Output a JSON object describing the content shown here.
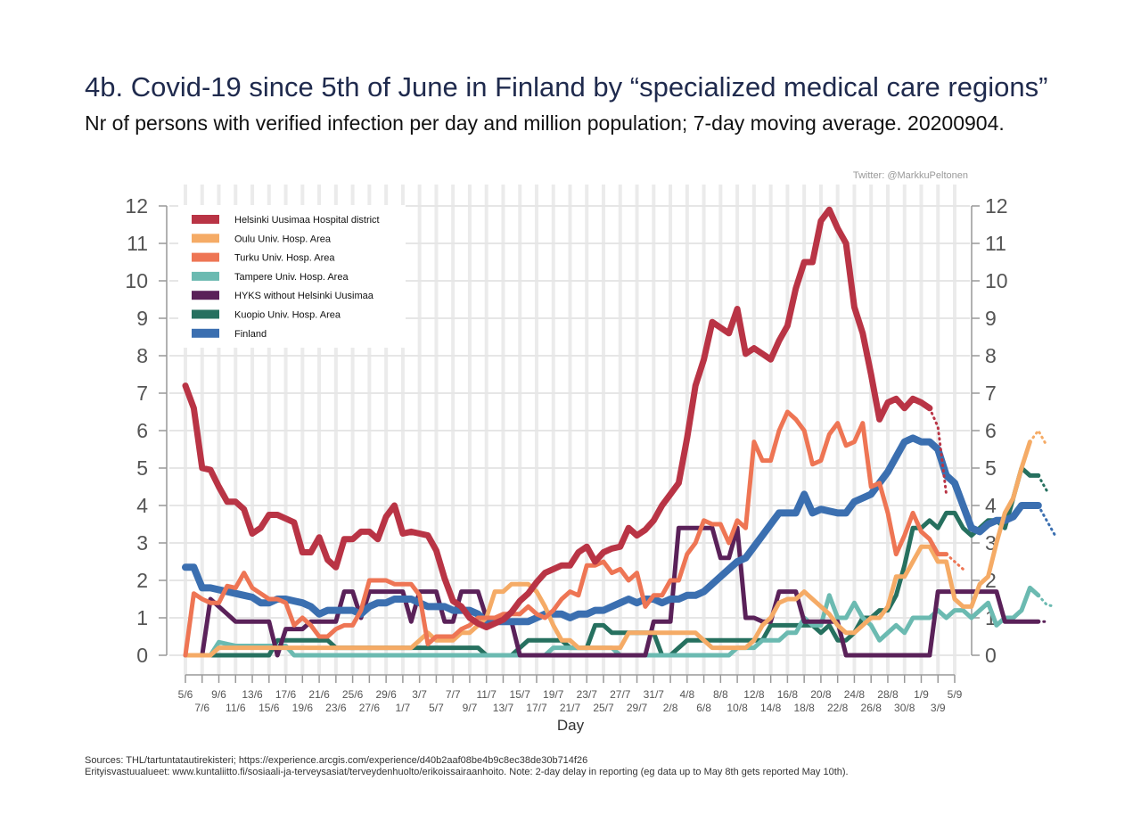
{
  "header": {
    "title": "4b. Covid-19 since 5th of June in Finland by “specialized medical care regions”",
    "subtitle": "Nr of persons with verified infection per day and million population; 7-day moving average. 20200904.",
    "credit": "Twitter: @MarkkuPeltonen"
  },
  "footer": {
    "source_line1": "Sources: THL/tartuntatautirekisteri; https://experience.arcgis.com/experience/d40b2aaf08be4b9c8ec38de30b714f26",
    "source_line2": "Erityisvastuualueet: www.kuntaliitto.fi/sosiaali-ja-terveysasiat/terveydenhuolto/erikoissairaanhoito. Note: 2-day delay in reporting (eg data up to May 8th gets reported May 10th)."
  },
  "chart_data": {
    "type": "line",
    "xlabel": "Day",
    "ylabel": "",
    "ylim": [
      0,
      12
    ],
    "yticks": [
      0,
      1,
      2,
      3,
      4,
      5,
      6,
      7,
      8,
      9,
      10,
      11,
      12
    ],
    "grid": true,
    "legend_position": "top-left",
    "x_start": "5/6",
    "x_end": "5/9",
    "xticks_upper": [
      "5/6",
      "9/6",
      "13/6",
      "17/6",
      "21/6",
      "25/6",
      "29/6",
      "3/7",
      "7/7",
      "11/7",
      "15/7",
      "19/7",
      "23/7",
      "27/7",
      "31/7",
      "4/8",
      "8/8",
      "12/8",
      "16/8",
      "20/8",
      "24/8",
      "28/8",
      "1/9",
      "5/9"
    ],
    "xticks_lower": [
      "7/6",
      "11/6",
      "15/6",
      "19/6",
      "23/6",
      "27/6",
      "1/7",
      "5/7",
      "9/7",
      "13/7",
      "17/7",
      "21/7",
      "25/7",
      "29/7",
      "2/8",
      "6/8",
      "10/8",
      "14/8",
      "18/8",
      "22/8",
      "26/8",
      "30/8",
      "3/9"
    ],
    "series": [
      {
        "name": "Kuopio Univ. Hosp. Area",
        "color": "#26705f",
        "width": 5,
        "values": [
          0,
          0,
          0,
          0,
          0,
          0,
          0,
          0,
          0,
          0,
          0,
          0.4,
          0.4,
          0.4,
          0.4,
          0.4,
          0.4,
          0.4,
          0.2,
          0.2,
          0.2,
          0.2,
          0.2,
          0.2,
          0.2,
          0.2,
          0.2,
          0.2,
          0.2,
          0.2,
          0.2,
          0.2,
          0.2,
          0.2,
          0.2,
          0.2,
          0,
          0,
          0,
          0,
          0.2,
          0.4,
          0.4,
          0.4,
          0.4,
          0.4,
          0.2,
          0.2,
          0.2,
          0.8,
          0.8,
          0.6,
          0.6,
          0.6,
          0.6,
          0.6,
          0.6,
          0,
          0,
          0.2,
          0.4,
          0.4,
          0.4,
          0.4,
          0.4,
          0.4,
          0.4,
          0.4,
          0.4,
          0.4,
          0.8,
          0.8,
          0.8,
          0.8,
          0.8,
          0.8,
          0.6,
          0.8,
          0.4,
          0.4,
          0.6,
          1.0,
          1.0,
          1.2,
          1.2,
          1.6,
          2.4,
          3.4,
          3.4,
          3.6,
          3.4,
          3.8,
          3.8,
          3.4,
          3.2,
          3.4,
          3.6,
          3.6,
          3.4,
          4.2,
          5.0,
          4.8,
          4.8
        ],
        "projection": [
          4.8,
          4.4
        ]
      },
      {
        "name": "Tampere Univ. Hosp. Area",
        "color": "#6bbab1",
        "width": 5,
        "values": [
          0,
          0,
          0,
          0,
          0.35,
          0.3,
          0.25,
          0.25,
          0.25,
          0.25,
          0.25,
          0.25,
          0.25,
          0,
          0,
          0,
          0,
          0,
          0,
          0,
          0,
          0,
          0,
          0,
          0,
          0,
          0,
          0,
          0,
          0,
          0,
          0,
          0,
          0,
          0,
          0,
          0,
          0,
          0,
          0,
          0,
          0,
          0,
          0,
          0.2,
          0.2,
          0.2,
          0.2,
          0.2,
          0.2,
          0.2,
          0.2,
          0,
          0,
          0,
          0,
          0,
          0,
          0,
          0,
          0,
          0,
          0,
          0,
          0,
          0,
          0.2,
          0.2,
          0.2,
          0.4,
          0.4,
          0.4,
          0.6,
          0.6,
          1.0,
          0.8,
          0.8,
          1.6,
          1.0,
          1.0,
          1.4,
          1.0,
          0.8,
          0.4,
          0.6,
          0.8,
          0.6,
          1.0,
          1.0,
          1.0,
          1.2,
          1.0,
          1.2,
          1.2,
          1.0,
          1.2,
          1.4,
          0.8,
          1.0,
          1.0,
          1.2,
          1.8,
          1.6
        ],
        "projection": [
          1.6,
          1.35,
          1.3
        ]
      },
      {
        "name": "HYKS without Helsinki Uusimaa",
        "color": "#5a2159",
        "width": 5,
        "values": [
          0,
          0,
          0,
          1.5,
          1.3,
          1.1,
          0.9,
          0.9,
          0.9,
          0.9,
          0.9,
          0,
          0.7,
          0.7,
          0.7,
          0.9,
          0.9,
          0.9,
          0.9,
          1.7,
          1.7,
          1.0,
          1.7,
          1.7,
          1.7,
          1.7,
          1.7,
          0.9,
          1.7,
          1.7,
          1.7,
          0.9,
          0.9,
          1.7,
          1.7,
          1.7,
          1.0,
          0.9,
          0.9,
          0.9,
          0,
          0,
          0,
          0,
          0,
          0,
          0,
          0,
          0,
          0,
          0,
          0,
          0,
          0,
          0,
          0,
          0.9,
          0.9,
          0.9,
          3.4,
          3.4,
          3.4,
          3.4,
          3.4,
          2.6,
          2.6,
          3.4,
          1.0,
          1.0,
          0.9,
          0.9,
          1.7,
          1.7,
          1.7,
          0.9,
          0.9,
          0.9,
          0.9,
          0.9,
          0,
          0,
          0,
          0,
          0,
          0,
          0,
          0,
          0,
          0,
          0,
          1.7,
          1.7,
          1.7,
          1.7,
          1.7,
          1.7,
          1.7,
          1.7,
          0.9,
          0.9,
          0.9,
          0.9,
          0.9
        ],
        "projection": [
          0.9,
          0.9
        ]
      },
      {
        "name": "Finland",
        "color": "#3b6fb0",
        "width": 8,
        "values": [
          2.35,
          2.35,
          1.8,
          1.8,
          1.75,
          1.7,
          1.65,
          1.6,
          1.55,
          1.4,
          1.4,
          1.5,
          1.5,
          1.45,
          1.4,
          1.3,
          1.1,
          1.2,
          1.2,
          1.2,
          1.2,
          1.1,
          1.3,
          1.4,
          1.4,
          1.5,
          1.5,
          1.5,
          1.4,
          1.3,
          1.3,
          1.3,
          1.2,
          1.2,
          1.2,
          1.1,
          0.9,
          0.9,
          0.9,
          0.9,
          0.9,
          0.9,
          1.0,
          1.1,
          1.1,
          1.1,
          1.0,
          1.1,
          1.1,
          1.2,
          1.2,
          1.3,
          1.4,
          1.5,
          1.4,
          1.5,
          1.5,
          1.4,
          1.5,
          1.5,
          1.6,
          1.6,
          1.7,
          1.9,
          2.1,
          2.3,
          2.5,
          2.6,
          2.9,
          3.2,
          3.5,
          3.8,
          3.8,
          3.8,
          4.3,
          3.8,
          3.9,
          3.85,
          3.8,
          3.8,
          4.1,
          4.2,
          4.3,
          4.6,
          4.9,
          5.3,
          5.7,
          5.8,
          5.7,
          5.7,
          5.5,
          4.8,
          4.6,
          4.0,
          3.4,
          3.3,
          3.5,
          3.6,
          3.6,
          3.7,
          4.0,
          4.0,
          4.0
        ],
        "projection": [
          4.0,
          3.6,
          3.2
        ]
      },
      {
        "name": "Oulu Univ. Hosp. Area",
        "color": "#f5ab66",
        "width": 5,
        "values": [
          0,
          0,
          0,
          0,
          0.2,
          0.2,
          0.2,
          0.2,
          0.2,
          0.2,
          0.2,
          0.2,
          0.2,
          0.2,
          0.2,
          0.2,
          0.2,
          0.2,
          0.2,
          0.2,
          0.2,
          0.2,
          0.2,
          0.2,
          0.2,
          0.2,
          0.2,
          0.2,
          0.4,
          0.6,
          0.4,
          0.4,
          0.4,
          0.6,
          0.6,
          0.8,
          1.0,
          1.7,
          1.7,
          1.9,
          1.9,
          1.9,
          1.7,
          1.3,
          0.8,
          0.4,
          0.4,
          0.2,
          0.2,
          0.2,
          0.2,
          0.2,
          0.2,
          0.6,
          0.6,
          0.6,
          0.6,
          0.6,
          0.6,
          0.6,
          0.6,
          0.6,
          0.4,
          0.2,
          0.2,
          0.2,
          0.2,
          0.2,
          0.4,
          0.8,
          1.0,
          1.4,
          1.5,
          1.5,
          1.7,
          1.5,
          1.3,
          1.1,
          0.8,
          0.6,
          0.6,
          0.8,
          1.0,
          1.0,
          1.3,
          2.1,
          2.1,
          2.5,
          2.9,
          2.9,
          2.5,
          2.5,
          1.5,
          1.3,
          1.3,
          1.9,
          2.1,
          3.0,
          3.8,
          4.2,
          5.0,
          5.7
        ],
        "projection": [
          5.7,
          6.0,
          5.6
        ]
      },
      {
        "name": "Turku Univ. Hosp. Area",
        "color": "#ee7554",
        "width": 5,
        "values": [
          0,
          1.65,
          1.5,
          1.4,
          1.4,
          1.85,
          1.8,
          2.2,
          1.8,
          1.65,
          1.5,
          1.5,
          1.4,
          0.8,
          1.0,
          0.8,
          0.5,
          0.5,
          0.7,
          0.8,
          0.8,
          1.2,
          2.0,
          2.0,
          2.0,
          1.9,
          1.9,
          1.9,
          1.6,
          0.3,
          0.5,
          0.5,
          0.5,
          0.7,
          0.8,
          1.0,
          1.0,
          1.0,
          1.1,
          1.1,
          1.1,
          1.3,
          1.1,
          1.0,
          1.2,
          1.5,
          1.7,
          1.6,
          2.4,
          2.4,
          2.5,
          2.2,
          2.3,
          2.0,
          2.2,
          1.3,
          1.6,
          1.6,
          2.0,
          2.0,
          2.7,
          3.0,
          3.6,
          3.5,
          3.5,
          3.0,
          3.6,
          3.4,
          5.7,
          5.2,
          5.2,
          6.0,
          6.5,
          6.3,
          6.0,
          5.1,
          5.2,
          5.9,
          6.2,
          5.6,
          5.7,
          6.2,
          4.5,
          4.6,
          3.8,
          2.7,
          3.2,
          3.8,
          3.3,
          3.1,
          2.7,
          2.7
        ],
        "projection": [
          2.7,
          2.5,
          2.3
        ]
      },
      {
        "name": "Helsinki Uusimaa Hospital district",
        "color": "#b93445",
        "width": 7,
        "values": [
          7.2,
          6.6,
          5.0,
          4.95,
          4.5,
          4.1,
          4.1,
          3.9,
          3.25,
          3.4,
          3.75,
          3.75,
          3.65,
          3.55,
          2.75,
          2.75,
          3.15,
          2.55,
          2.35,
          3.1,
          3.1,
          3.3,
          3.3,
          3.1,
          3.7,
          4.0,
          3.25,
          3.3,
          3.25,
          3.2,
          2.8,
          2.05,
          1.45,
          1.3,
          1.0,
          0.85,
          0.75,
          0.85,
          0.95,
          1.15,
          1.45,
          1.65,
          1.95,
          2.2,
          2.3,
          2.4,
          2.4,
          2.75,
          2.9,
          2.5,
          2.75,
          2.85,
          2.9,
          3.4,
          3.2,
          3.35,
          3.6,
          4.0,
          4.3,
          4.6,
          5.8,
          7.2,
          7.9,
          8.9,
          8.75,
          8.6,
          9.25,
          8.05,
          8.2,
          8.05,
          7.9,
          8.4,
          8.8,
          9.8,
          10.5,
          10.5,
          11.6,
          11.9,
          11.4,
          11.0,
          9.3,
          8.6,
          7.5,
          6.3,
          6.75,
          6.85,
          6.6,
          6.85,
          6.75,
          6.6
        ],
        "projection": [
          6.6,
          6.1,
          4.3
        ]
      }
    ]
  }
}
